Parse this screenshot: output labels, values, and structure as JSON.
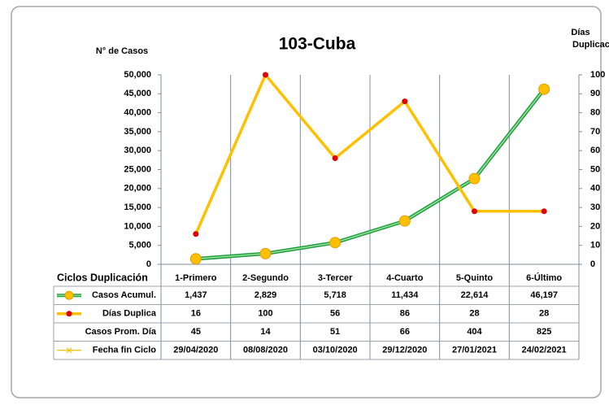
{
  "chart_data": {
    "type": "line",
    "title": "103-Cuba",
    "y_label": "N° de Casos",
    "y2_label": [
      "Días",
      "Duplicación"
    ],
    "table_header": "Ciclos Duplicación",
    "categories": [
      "1-Primero",
      "2-Segundo",
      "3-Tercer",
      "4-Cuarto",
      "5-Quinto",
      "6-Último"
    ],
    "series": [
      {
        "name": "Casos Acumul.",
        "color": "#1e9e3e",
        "marker_color": "#ffc000",
        "axis": "y",
        "values": [
          1437,
          2829,
          5718,
          11434,
          22614,
          46197
        ],
        "value_labels": [
          "1,437",
          "2,829",
          "5,718",
          "11,434",
          "22,614",
          "46,197"
        ]
      },
      {
        "name": "Días Duplica",
        "color": "#ffc000",
        "marker_color": "#e00000",
        "axis": "y2",
        "values": [
          16,
          100,
          56,
          86,
          28,
          28
        ]
      },
      {
        "name": "Casos Prom. Día",
        "values": [
          45,
          14,
          51,
          66,
          404,
          825
        ]
      },
      {
        "name": "Fecha fin Ciclo",
        "color": "#ffc000",
        "values": [
          "29/04/2020",
          "08/08/2020",
          "03/10/2020",
          "29/12/2020",
          "27/01/2021",
          "24/02/2021"
        ]
      }
    ],
    "ylim": [
      0,
      50000
    ],
    "yticks": [
      0,
      {
        "value": 5000,
        "label": "5,000"
      },
      {
        "value": 10000,
        "label": "10,000"
      },
      {
        "value": 15000,
        "label": "15,000"
      },
      {
        "value": 20000,
        "label": "20,000"
      },
      {
        "value": 25000,
        "label": "25,000"
      },
      {
        "value": 30000,
        "label": "30,000"
      },
      {
        "value": 35000,
        "label": "35,000"
      },
      {
        "value": 40000,
        "label": "40,000"
      },
      {
        "value": 45000,
        "label": "45,000"
      },
      {
        "value": 50000,
        "label": "50,000"
      }
    ],
    "y2lim": [
      0,
      100
    ],
    "y2ticks": [
      0,
      10,
      20,
      30,
      40,
      50,
      60,
      70,
      80,
      90,
      100
    ]
  }
}
